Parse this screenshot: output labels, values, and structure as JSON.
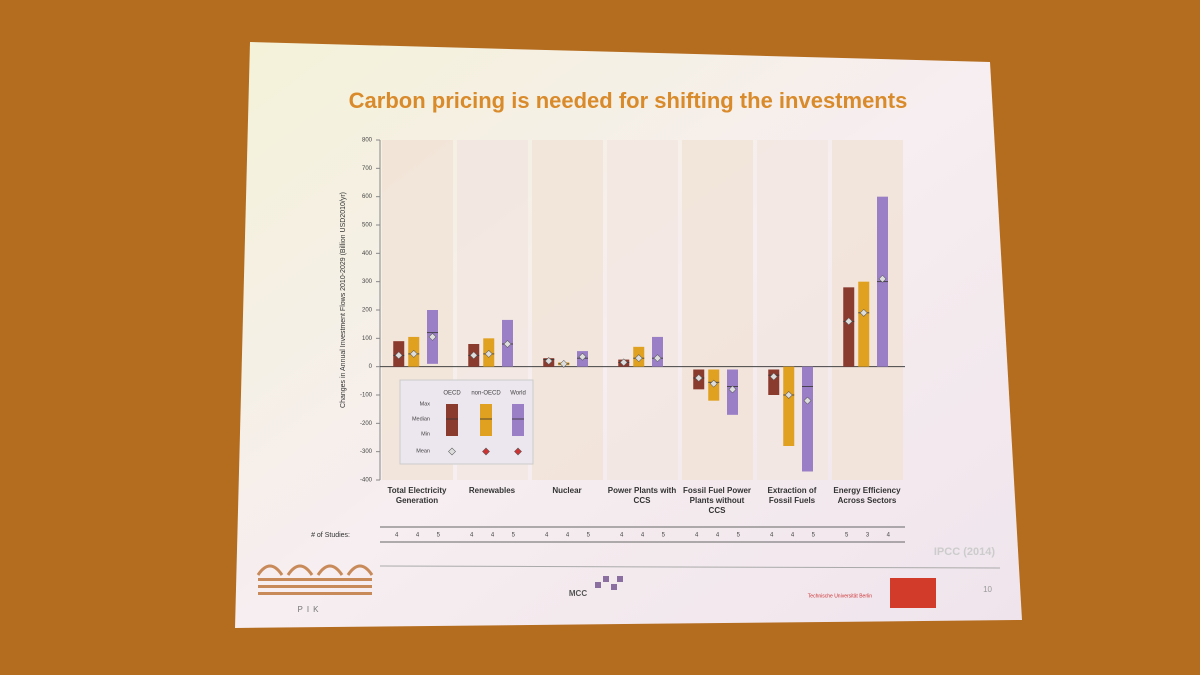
{
  "chart_data": {
    "type": "rangebar",
    "title": "Carbon pricing is needed for shifting the investments",
    "ylabel": "Changes in Annual Investment Flows 2010-2029 (Billion USD2010/yr)",
    "categories": [
      "Total Electricity Generation",
      "Renewables",
      "Nuclear",
      "Power Plants with CCS",
      "Fossil Fuel Power Plants without CCS",
      "Extraction of Fossil Fuels",
      "Energy Efficiency Across Sectors"
    ],
    "series": [
      {
        "name": "OECD",
        "color": "#8b3a2e",
        "min": [
          0,
          0,
          0,
          0,
          -80,
          -100,
          0
        ],
        "max": [
          90,
          80,
          30,
          25,
          -10,
          -10,
          280
        ],
        "median": [
          40,
          40,
          25,
          15,
          -40,
          -30,
          160
        ],
        "mean": [
          40,
          40,
          20,
          15,
          -40,
          -35,
          160
        ]
      },
      {
        "name": "non-OECD",
        "color": "#e0a020",
        "min": [
          0,
          0,
          5,
          0,
          -120,
          -280,
          0
        ],
        "max": [
          105,
          100,
          15,
          70,
          -10,
          0,
          300
        ],
        "median": [
          45,
          45,
          10,
          30,
          -55,
          -100,
          190
        ],
        "mean": [
          45,
          45,
          10,
          30,
          -60,
          -100,
          190
        ]
      },
      {
        "name": "World",
        "color": "#9b7fc6",
        "min": [
          10,
          0,
          0,
          0,
          -170,
          -370,
          0
        ],
        "max": [
          200,
          165,
          55,
          105,
          -10,
          0,
          600
        ],
        "median": [
          120,
          80,
          30,
          30,
          -70,
          -70,
          300
        ],
        "mean": [
          105,
          80,
          35,
          30,
          -80,
          -120,
          310
        ]
      }
    ],
    "legend_labels": [
      "Max",
      "Median",
      "Min",
      "Mean"
    ],
    "ylim": [
      -400,
      800
    ],
    "yticks": [
      -400,
      -300,
      -200,
      -100,
      0,
      100,
      200,
      300,
      400,
      500,
      600,
      700,
      800
    ],
    "studies_label": "# of Studies:",
    "studies": [
      [
        4,
        4,
        5
      ],
      [
        4,
        4,
        5
      ],
      [
        4,
        4,
        5
      ],
      [
        4,
        4,
        5
      ],
      [
        4,
        4,
        5
      ],
      [
        4,
        4,
        5
      ],
      [
        5,
        3,
        4
      ]
    ]
  },
  "slide": {
    "source": "IPCC (2014)",
    "logo_left": "PIK",
    "logo_mid": "MCC",
    "logo_right": "Technische Universität Berlin",
    "page": "10"
  }
}
